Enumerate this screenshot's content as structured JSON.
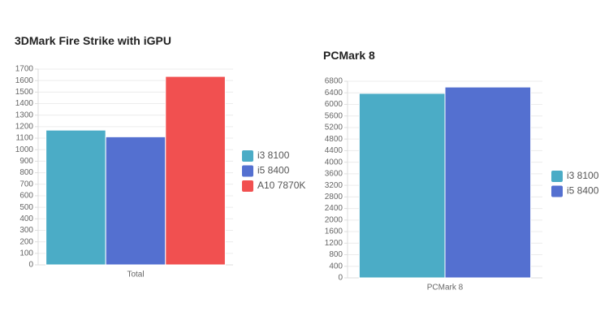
{
  "chart_data": [
    {
      "type": "bar",
      "title": "3DMark Fire Strike with iGPU",
      "categories": [
        "Total"
      ],
      "series": [
        {
          "name": "i3 8100",
          "color": "#4bacc6",
          "values": [
            1170
          ]
        },
        {
          "name": "i5 8400",
          "color": "#5470d0",
          "values": [
            1112
          ]
        },
        {
          "name": "A10 7870K",
          "color": "#f15050",
          "values": [
            1636
          ]
        }
      ],
      "ylim": [
        0,
        1700
      ],
      "yticks": [
        0,
        100,
        200,
        300,
        400,
        500,
        600,
        700,
        800,
        900,
        1000,
        1100,
        1200,
        1300,
        1400,
        1500,
        1600,
        1700
      ],
      "grid": true,
      "legend": "right"
    },
    {
      "type": "bar",
      "title": "PCMark 8",
      "categories": [
        "PCMark 8"
      ],
      "series": [
        {
          "name": "i3 8100",
          "color": "#4bacc6",
          "values": [
            6380
          ]
        },
        {
          "name": "i5 8400",
          "color": "#5470d0",
          "values": [
            6600
          ]
        }
      ],
      "ylim": [
        0,
        6800
      ],
      "yticks": [
        0,
        400,
        800,
        1200,
        1600,
        2000,
        2400,
        2800,
        3200,
        3600,
        4000,
        4400,
        4800,
        5200,
        5600,
        6000,
        6400,
        6800
      ],
      "grid": true,
      "legend": "right"
    }
  ]
}
